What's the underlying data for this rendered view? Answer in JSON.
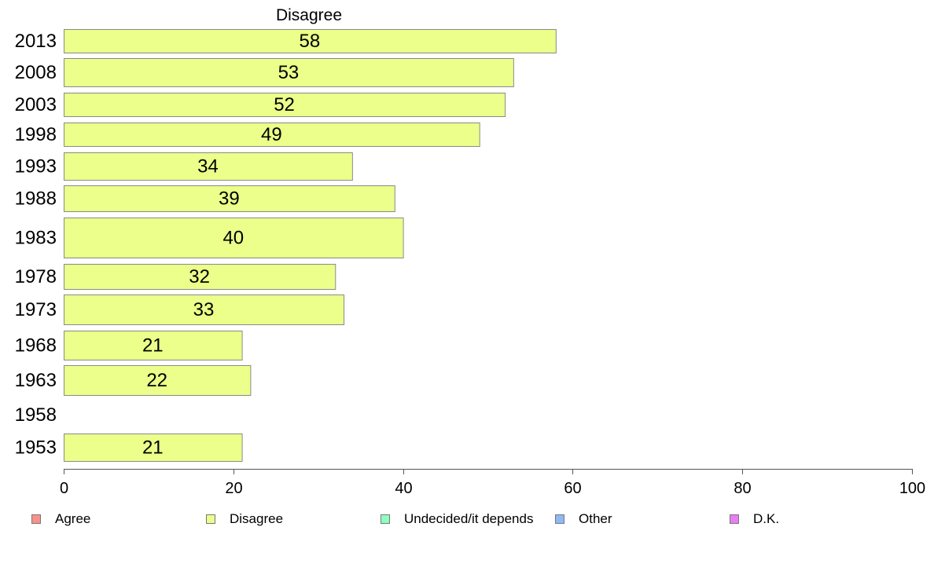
{
  "chart_data": {
    "type": "bar",
    "orientation": "horizontal",
    "title": "Disagree",
    "categories": [
      "2013",
      "2008",
      "2003",
      "1998",
      "1993",
      "1988",
      "1983",
      "1978",
      "1973",
      "1968",
      "1963",
      "1958",
      "1953"
    ],
    "series": [
      {
        "name": "Disagree",
        "values": [
          58,
          53,
          52,
          49,
          34,
          39,
          40,
          32,
          33,
          21,
          22,
          null,
          21
        ]
      }
    ],
    "data_labels": [
      "58",
      "53",
      "52",
      "49",
      "34",
      "39",
      "40",
      "32",
      "33",
      "21",
      "22",
      "",
      "21"
    ],
    "xlim": [
      0,
      100
    ],
    "x_ticks": [
      0,
      20,
      40,
      60,
      80,
      100
    ],
    "xlabel": "",
    "ylabel": "",
    "grid": false,
    "legend_position": "bottom",
    "bar_color": "#ebff8a",
    "bar_edge_color": "#8a8a8a"
  },
  "legend": {
    "items": [
      {
        "label": "Agree",
        "color": "#f7928b"
      },
      {
        "label": "Disagree",
        "color": "#ebff8a"
      },
      {
        "label": "Undecided/it depends",
        "color": "#8fffc0"
      },
      {
        "label": "Other",
        "color": "#8fb8f7"
      },
      {
        "label": "D.K.",
        "color": "#e97df2"
      }
    ]
  }
}
